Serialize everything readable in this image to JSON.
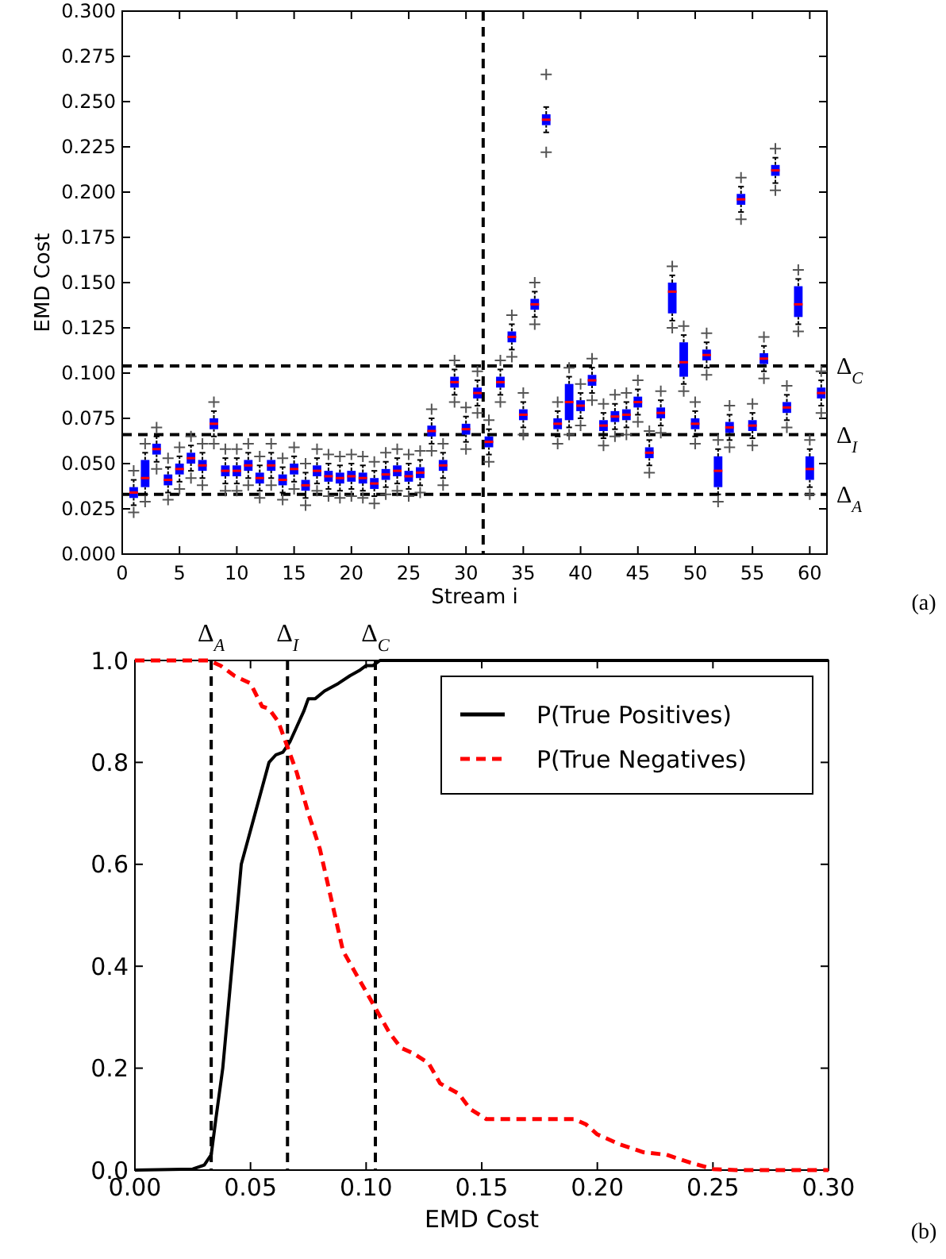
{
  "chart_data": [
    {
      "type": "box",
      "xlabel": "Stream i",
      "ylabel": "EMD Cost",
      "marker": "cross",
      "x": [
        1,
        2,
        3,
        4,
        5,
        6,
        7,
        8,
        9,
        10,
        11,
        12,
        13,
        14,
        15,
        16,
        17,
        18,
        19,
        20,
        21,
        22,
        23,
        24,
        25,
        26,
        27,
        28,
        29,
        30,
        31,
        32,
        33,
        34,
        35,
        36,
        37,
        38,
        39,
        40,
        41,
        42,
        43,
        44,
        45,
        46,
        47,
        48,
        49,
        50,
        51,
        52,
        53,
        54,
        55,
        56,
        57,
        58,
        59,
        60,
        61
      ],
      "xlim": [
        0,
        61.5
      ],
      "xticks": [
        0,
        5,
        10,
        15,
        20,
        25,
        30,
        35,
        40,
        45,
        50,
        55,
        60
      ],
      "ylim": [
        0,
        0.3
      ],
      "yticks": [
        {
          "value": 0,
          "label": "0.000"
        },
        {
          "value": 0.025,
          "label": "0.025"
        },
        {
          "value": 0.05,
          "label": "0.050"
        },
        {
          "value": 0.075,
          "label": "0.075"
        },
        {
          "value": 0.1,
          "label": "0.100"
        },
        {
          "value": 0.125,
          "label": "0.125"
        },
        {
          "value": 0.15,
          "label": "0.150"
        },
        {
          "value": 0.175,
          "label": "0.175"
        },
        {
          "value": 0.2,
          "label": "0.200"
        },
        {
          "value": 0.225,
          "label": "0.225"
        },
        {
          "value": 0.25,
          "label": "0.250"
        },
        {
          "value": 0.275,
          "label": "0.275"
        },
        {
          "value": 0.3,
          "label": "0.300"
        }
      ],
      "series": [
        {
          "color": "#0000ff",
          "boxes": [
            {
              "low": 0.027,
              "q1": 0.031,
              "median": 0.034,
              "q3": 0.037,
              "high": 0.041,
              "outliers": [
                0.023,
                0.046
              ]
            },
            {
              "low": 0.033,
              "q1": 0.037,
              "median": 0.042,
              "q3": 0.052,
              "high": 0.056,
              "outliers": [
                0.029,
                0.061
              ]
            },
            {
              "low": 0.051,
              "q1": 0.055,
              "median": 0.058,
              "q3": 0.061,
              "high": 0.065,
              "outliers": [
                0.047,
                0.07
              ]
            },
            {
              "low": 0.034,
              "q1": 0.038,
              "median": 0.041,
              "q3": 0.044,
              "high": 0.048,
              "outliers": [
                0.03,
                0.053
              ]
            },
            {
              "low": 0.04,
              "q1": 0.044,
              "median": 0.047,
              "q3": 0.05,
              "high": 0.054,
              "outliers": [
                0.036,
                0.059
              ]
            },
            {
              "low": 0.046,
              "q1": 0.05,
              "median": 0.053,
              "q3": 0.056,
              "high": 0.06,
              "outliers": [
                0.042,
                0.065
              ]
            },
            {
              "low": 0.042,
              "q1": 0.046,
              "median": 0.049,
              "q3": 0.052,
              "high": 0.056,
              "outliers": [
                0.038,
                0.061
              ]
            },
            {
              "low": 0.065,
              "q1": 0.069,
              "median": 0.072,
              "q3": 0.075,
              "high": 0.079,
              "outliers": [
                0.061,
                0.084
              ]
            },
            {
              "low": 0.039,
              "q1": 0.043,
              "median": 0.046,
              "q3": 0.049,
              "high": 0.053,
              "outliers": [
                0.035,
                0.058
              ]
            },
            {
              "low": 0.039,
              "q1": 0.043,
              "median": 0.046,
              "q3": 0.049,
              "high": 0.053,
              "outliers": [
                0.035,
                0.058
              ]
            },
            {
              "low": 0.042,
              "q1": 0.046,
              "median": 0.049,
              "q3": 0.052,
              "high": 0.056,
              "outliers": [
                0.038,
                0.061
              ]
            },
            {
              "low": 0.035,
              "q1": 0.039,
              "median": 0.042,
              "q3": 0.045,
              "high": 0.049,
              "outliers": [
                0.031,
                0.054
              ]
            },
            {
              "low": 0.042,
              "q1": 0.046,
              "median": 0.049,
              "q3": 0.052,
              "high": 0.056,
              "outliers": [
                0.038,
                0.061
              ]
            },
            {
              "low": 0.034,
              "q1": 0.038,
              "median": 0.041,
              "q3": 0.044,
              "high": 0.048,
              "outliers": [
                0.03,
                0.053
              ]
            },
            {
              "low": 0.04,
              "q1": 0.044,
              "median": 0.047,
              "q3": 0.05,
              "high": 0.054,
              "outliers": [
                0.036,
                0.059
              ]
            },
            {
              "low": 0.031,
              "q1": 0.035,
              "median": 0.038,
              "q3": 0.041,
              "high": 0.045,
              "outliers": [
                0.027,
                0.05
              ]
            },
            {
              "low": 0.039,
              "q1": 0.043,
              "median": 0.046,
              "q3": 0.049,
              "high": 0.053,
              "outliers": [
                0.035,
                0.058
              ]
            },
            {
              "low": 0.036,
              "q1": 0.04,
              "median": 0.043,
              "q3": 0.046,
              "high": 0.05,
              "outliers": [
                0.032,
                0.055
              ]
            },
            {
              "low": 0.035,
              "q1": 0.039,
              "median": 0.042,
              "q3": 0.045,
              "high": 0.049,
              "outliers": [
                0.031,
                0.054
              ]
            },
            {
              "low": 0.036,
              "q1": 0.04,
              "median": 0.043,
              "q3": 0.046,
              "high": 0.05,
              "outliers": [
                0.032,
                0.055
              ]
            },
            {
              "low": 0.035,
              "q1": 0.039,
              "median": 0.042,
              "q3": 0.045,
              "high": 0.049,
              "outliers": [
                0.031,
                0.054
              ]
            },
            {
              "low": 0.032,
              "q1": 0.036,
              "median": 0.039,
              "q3": 0.042,
              "high": 0.046,
              "outliers": [
                0.028,
                0.051
              ]
            },
            {
              "low": 0.037,
              "q1": 0.041,
              "median": 0.044,
              "q3": 0.047,
              "high": 0.051,
              "outliers": [
                0.033,
                0.056
              ]
            },
            {
              "low": 0.039,
              "q1": 0.043,
              "median": 0.046,
              "q3": 0.049,
              "high": 0.053,
              "outliers": [
                0.035,
                0.058
              ]
            },
            {
              "low": 0.036,
              "q1": 0.04,
              "median": 0.043,
              "q3": 0.046,
              "high": 0.05,
              "outliers": [
                0.032,
                0.055
              ]
            },
            {
              "low": 0.038,
              "q1": 0.042,
              "median": 0.045,
              "q3": 0.048,
              "high": 0.052,
              "outliers": [
                0.034,
                0.057
              ]
            },
            {
              "low": 0.061,
              "q1": 0.065,
              "median": 0.068,
              "q3": 0.071,
              "high": 0.075,
              "outliers": [
                0.057,
                0.08
              ]
            },
            {
              "low": 0.042,
              "q1": 0.046,
              "median": 0.049,
              "q3": 0.052,
              "high": 0.056,
              "outliers": [
                0.038,
                0.061
              ]
            },
            {
              "low": 0.088,
              "q1": 0.092,
              "median": 0.095,
              "q3": 0.098,
              "high": 0.102,
              "outliers": [
                0.084,
                0.107
              ]
            },
            {
              "low": 0.062,
              "q1": 0.066,
              "median": 0.069,
              "q3": 0.072,
              "high": 0.076,
              "outliers": [
                0.058,
                0.081
              ]
            },
            {
              "low": 0.082,
              "q1": 0.086,
              "median": 0.089,
              "q3": 0.092,
              "high": 0.096,
              "outliers": [
                0.078,
                0.101
              ]
            },
            {
              "low": 0.055,
              "q1": 0.059,
              "median": 0.062,
              "q3": 0.065,
              "high": 0.069,
              "outliers": [
                0.051,
                0.074
              ]
            },
            {
              "low": 0.088,
              "q1": 0.092,
              "median": 0.095,
              "q3": 0.098,
              "high": 0.102,
              "outliers": [
                0.084,
                0.107
              ]
            },
            {
              "low": 0.113,
              "q1": 0.117,
              "median": 0.12,
              "q3": 0.123,
              "high": 0.127,
              "outliers": [
                0.109,
                0.132
              ]
            },
            {
              "low": 0.07,
              "q1": 0.074,
              "median": 0.077,
              "q3": 0.08,
              "high": 0.084,
              "outliers": [
                0.066,
                0.089
              ]
            },
            {
              "low": 0.131,
              "q1": 0.135,
              "median": 0.138,
              "q3": 0.141,
              "high": 0.145,
              "outliers": [
                0.127,
                0.15
              ]
            },
            {
              "low": 0.233,
              "q1": 0.237,
              "median": 0.24,
              "q3": 0.243,
              "high": 0.247,
              "outliers": [
                0.222,
                0.265
              ]
            },
            {
              "low": 0.065,
              "q1": 0.069,
              "median": 0.072,
              "q3": 0.075,
              "high": 0.079,
              "outliers": [
                0.061,
                0.084
              ]
            },
            {
              "low": 0.07,
              "q1": 0.074,
              "median": 0.084,
              "q3": 0.094,
              "high": 0.098,
              "outliers": [
                0.066,
                0.103
              ]
            },
            {
              "low": 0.075,
              "q1": 0.079,
              "median": 0.082,
              "q3": 0.085,
              "high": 0.089,
              "outliers": [
                0.071,
                0.094
              ]
            },
            {
              "low": 0.089,
              "q1": 0.093,
              "median": 0.096,
              "q3": 0.099,
              "high": 0.103,
              "outliers": [
                0.085,
                0.108
              ]
            },
            {
              "low": 0.064,
              "q1": 0.068,
              "median": 0.071,
              "q3": 0.074,
              "high": 0.078,
              "outliers": [
                0.06,
                0.083
              ]
            },
            {
              "low": 0.069,
              "q1": 0.073,
              "median": 0.076,
              "q3": 0.079,
              "high": 0.083,
              "outliers": [
                0.065,
                0.088
              ]
            },
            {
              "low": 0.07,
              "q1": 0.074,
              "median": 0.077,
              "q3": 0.08,
              "high": 0.084,
              "outliers": [
                0.066,
                0.089
              ]
            },
            {
              "low": 0.077,
              "q1": 0.081,
              "median": 0.084,
              "q3": 0.087,
              "high": 0.091,
              "outliers": [
                0.073,
                0.096
              ]
            },
            {
              "low": 0.049,
              "q1": 0.053,
              "median": 0.056,
              "q3": 0.059,
              "high": 0.063,
              "outliers": [
                0.045,
                0.068
              ]
            },
            {
              "low": 0.071,
              "q1": 0.075,
              "median": 0.078,
              "q3": 0.081,
              "high": 0.085,
              "outliers": [
                0.067,
                0.09
              ]
            },
            {
              "low": 0.129,
              "q1": 0.133,
              "median": 0.145,
              "q3": 0.15,
              "high": 0.154,
              "outliers": [
                0.125,
                0.159
              ]
            },
            {
              "low": 0.094,
              "q1": 0.098,
              "median": 0.106,
              "q3": 0.117,
              "high": 0.121,
              "outliers": [
                0.09,
                0.126
              ]
            },
            {
              "low": 0.065,
              "q1": 0.069,
              "median": 0.072,
              "q3": 0.075,
              "high": 0.079,
              "outliers": [
                0.061,
                0.084
              ]
            },
            {
              "low": 0.103,
              "q1": 0.107,
              "median": 0.11,
              "q3": 0.113,
              "high": 0.117,
              "outliers": [
                0.099,
                0.122
              ]
            },
            {
              "low": 0.033,
              "q1": 0.037,
              "median": 0.046,
              "q3": 0.054,
              "high": 0.058,
              "outliers": [
                0.029,
                0.063
              ]
            },
            {
              "low": 0.063,
              "q1": 0.067,
              "median": 0.07,
              "q3": 0.073,
              "high": 0.077,
              "outliers": [
                0.059,
                0.082
              ]
            },
            {
              "low": 0.189,
              "q1": 0.193,
              "median": 0.196,
              "q3": 0.199,
              "high": 0.203,
              "outliers": [
                0.185,
                0.208
              ]
            },
            {
              "low": 0.064,
              "q1": 0.068,
              "median": 0.071,
              "q3": 0.074,
              "high": 0.078,
              "outliers": [
                0.06,
                0.083
              ]
            },
            {
              "low": 0.101,
              "q1": 0.105,
              "median": 0.108,
              "q3": 0.111,
              "high": 0.115,
              "outliers": [
                0.097,
                0.12
              ]
            },
            {
              "low": 0.205,
              "q1": 0.209,
              "median": 0.212,
              "q3": 0.215,
              "high": 0.219,
              "outliers": [
                0.201,
                0.224
              ]
            },
            {
              "low": 0.074,
              "q1": 0.078,
              "median": 0.081,
              "q3": 0.084,
              "high": 0.088,
              "outliers": [
                0.07,
                0.093
              ]
            },
            {
              "low": 0.127,
              "q1": 0.131,
              "median": 0.138,
              "q3": 0.148,
              "high": 0.152,
              "outliers": [
                0.123,
                0.157
              ]
            },
            {
              "low": 0.037,
              "q1": 0.041,
              "median": 0.047,
              "q3": 0.054,
              "high": 0.058,
              "outliers": [
                0.033,
                0.063
              ]
            },
            {
              "low": 0.082,
              "q1": 0.086,
              "median": 0.089,
              "q3": 0.092,
              "high": 0.096,
              "outliers": [
                0.078,
                0.101
              ]
            }
          ]
        }
      ],
      "ref_lines": [
        {
          "axis": "y",
          "value": 0.104,
          "label": "Δ$_{C}$",
          "line_style": "dashed"
        },
        {
          "axis": "y",
          "value": 0.066,
          "label": "Δ$_{I}$",
          "line_style": "dashed"
        },
        {
          "axis": "y",
          "value": 0.033,
          "label": "Δ$_{A}$",
          "line_style": "dashed"
        },
        {
          "axis": "x",
          "value": 31.5,
          "label": null,
          "line_style": "dashed"
        }
      ],
      "annotations": [
        "(a)"
      ]
    },
    {
      "type": "line",
      "xlabel": "EMD Cost",
      "legend": "top right",
      "xlim": [
        0,
        0.3
      ],
      "xticks": [
        {
          "value": 0,
          "label": "0.00"
        },
        {
          "value": 0.05,
          "label": "0.05"
        },
        {
          "value": 0.1,
          "label": "0.10"
        },
        {
          "value": 0.15,
          "label": "0.15"
        },
        {
          "value": 0.2,
          "label": "0.20"
        },
        {
          "value": 0.25,
          "label": "0.25"
        },
        {
          "value": 0.3,
          "label": "0.30"
        }
      ],
      "ylim": [
        0,
        1
      ],
      "yticks": [
        {
          "value": 0,
          "label": "0.0"
        },
        {
          "value": 0.2,
          "label": "0.2"
        },
        {
          "value": 0.4,
          "label": "0.4"
        },
        {
          "value": 0.6,
          "label": "0.6"
        },
        {
          "value": 0.8,
          "label": "0.8"
        },
        {
          "value": 1,
          "label": "1.0"
        }
      ],
      "series": [
        {
          "name": "P(True Positives)",
          "color": "#000000",
          "line_style": "solid",
          "x": [
            0,
            0.025,
            0.03,
            0.033,
            0.035,
            0.038,
            0.041,
            0.044,
            0.046,
            0.049,
            0.052,
            0.055,
            0.058,
            0.061,
            0.064,
            0.067,
            0.07,
            0.073,
            0.075,
            0.078,
            0.082,
            0.088,
            0.093,
            0.097,
            0.1,
            0.103,
            0.106,
            0.3
          ],
          "values": [
            0,
            0.002,
            0.01,
            0.03,
            0.1,
            0.2,
            0.35,
            0.5,
            0.6,
            0.65,
            0.7,
            0.75,
            0.8,
            0.815,
            0.82,
            0.84,
            0.87,
            0.9,
            0.925,
            0.925,
            0.94,
            0.955,
            0.97,
            0.98,
            0.99,
            0.99,
            1,
            1
          ]
        },
        {
          "name": "P(True Negatives)",
          "color": "#ff0000",
          "line_style": "dashed",
          "x": [
            0,
            0.032,
            0.037,
            0.043,
            0.05,
            0.055,
            0.058,
            0.062,
            0.066,
            0.07,
            0.075,
            0.08,
            0.085,
            0.09,
            0.095,
            0.1,
            0.105,
            0.11,
            0.115,
            0.12,
            0.127,
            0.132,
            0.14,
            0.145,
            0.152,
            0.16,
            0.19,
            0.195,
            0.2,
            0.21,
            0.22,
            0.23,
            0.24,
            0.25,
            0.26,
            0.3
          ],
          "values": [
            1,
            1,
            0.99,
            0.97,
            0.955,
            0.91,
            0.905,
            0.88,
            0.83,
            0.78,
            0.7,
            0.63,
            0.53,
            0.43,
            0.39,
            0.35,
            0.31,
            0.27,
            0.24,
            0.23,
            0.21,
            0.17,
            0.15,
            0.12,
            0.1,
            0.1,
            0.1,
            0.09,
            0.07,
            0.05,
            0.035,
            0.03,
            0.015,
            0.002,
            0,
            0
          ]
        }
      ],
      "ref_lines": [
        {
          "axis": "x",
          "value": 0.033,
          "label": "Δ$_{A}$",
          "line_style": "dashed"
        },
        {
          "axis": "x",
          "value": 0.066,
          "label": "Δ$_{I}$",
          "line_style": "dashed"
        },
        {
          "axis": "x",
          "value": 0.104,
          "label": "Δ$_{C}$",
          "line_style": "dashed"
        }
      ],
      "annotations": [
        "(b)"
      ]
    }
  ]
}
